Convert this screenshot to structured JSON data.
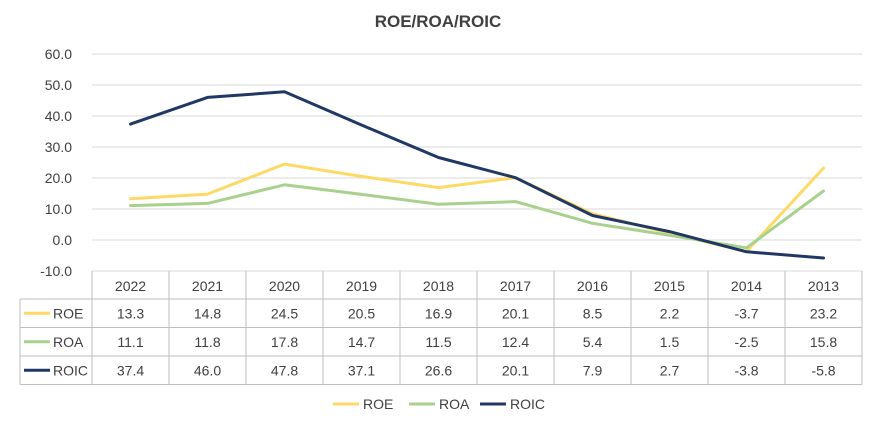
{
  "chart_data": {
    "type": "line",
    "title": "ROE/ROA/ROIC",
    "categories": [
      "2022",
      "2021",
      "2020",
      "2019",
      "2018",
      "2017",
      "2016",
      "2015",
      "2014",
      "2013"
    ],
    "series": [
      {
        "name": "ROE",
        "color": "#ffd966",
        "values": [
          13.3,
          14.8,
          24.5,
          20.5,
          16.9,
          20.1,
          8.5,
          2.2,
          -3.7,
          23.2
        ],
        "labels": [
          "13.3",
          "14.8",
          "24.5",
          "20.5",
          "16.9",
          "20.1",
          "8.5",
          "2.2",
          "-3.7",
          "23.2"
        ]
      },
      {
        "name": "ROA",
        "color": "#a9d18e",
        "values": [
          11.1,
          11.8,
          17.8,
          14.7,
          11.5,
          12.4,
          5.4,
          1.5,
          -2.5,
          15.8
        ],
        "labels": [
          "11.1",
          "11.8",
          "17.8",
          "14.7",
          "11.5",
          "12.4",
          "5.4",
          "1.5",
          "-2.5",
          "15.8"
        ]
      },
      {
        "name": "ROIC",
        "color": "#203864",
        "values": [
          37.4,
          46.0,
          47.8,
          37.1,
          26.6,
          20.1,
          7.9,
          2.7,
          -3.8,
          -5.8
        ],
        "labels": [
          "37.4",
          "46.0",
          "47.8",
          "37.1",
          "26.6",
          "20.1",
          "7.9",
          "2.7",
          "-3.8",
          "-5.8"
        ]
      }
    ],
    "ylim": [
      -10,
      60
    ],
    "yticks": [
      "60.0",
      "50.0",
      "40.0",
      "30.0",
      "20.0",
      "10.0",
      "0.0",
      "-10.0"
    ],
    "ytick_values": [
      60,
      50,
      40,
      30,
      20,
      10,
      0,
      -10
    ],
    "grid": true,
    "legend": "bottom",
    "data_table": true
  }
}
